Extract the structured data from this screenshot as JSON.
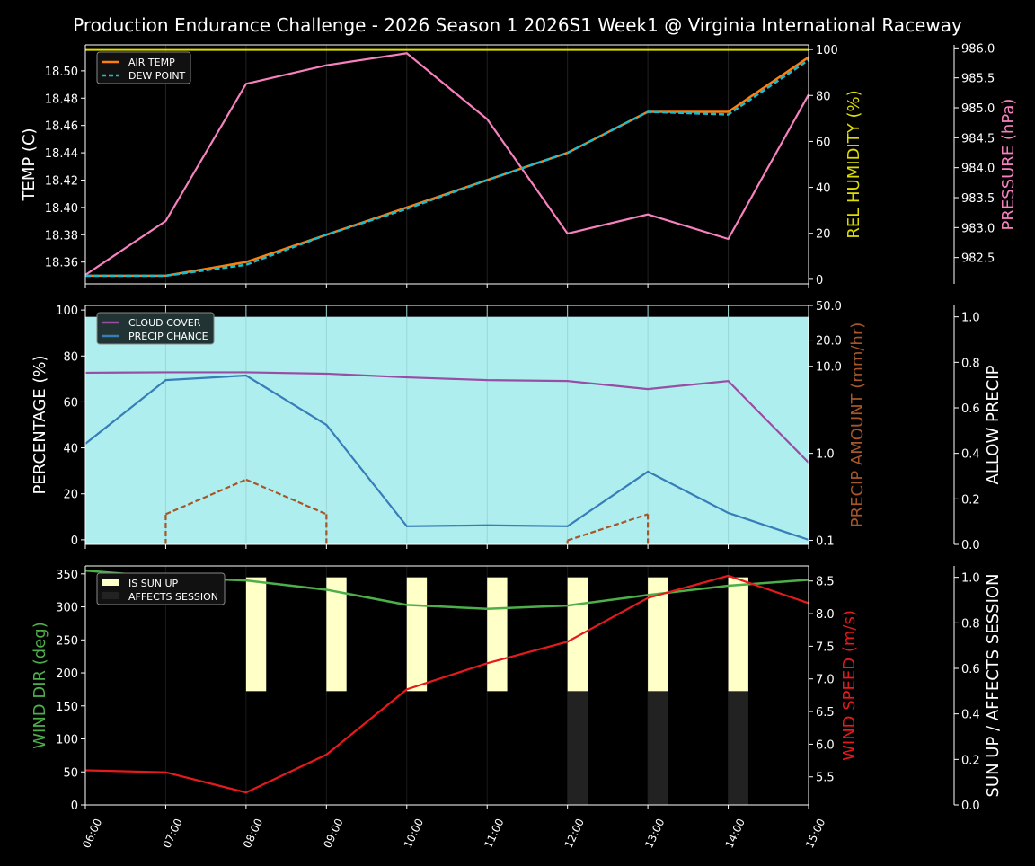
{
  "chart_data": [
    {
      "type": "line",
      "title": "Production Endurance Challenge - 2026 Season 1 2026S1 Week1 @ Virginia International Raceway",
      "x": [
        "06:00",
        "07:00",
        "08:00",
        "09:00",
        "10:00",
        "11:00",
        "12:00",
        "13:00",
        "14:00",
        "15:00"
      ],
      "ylabel": "TEMP (C)",
      "ylim": [
        18.344,
        18.519
      ],
      "yticks": [
        "18.36",
        "18.38",
        "18.40",
        "18.42",
        "18.44",
        "18.46",
        "18.48",
        "18.50"
      ],
      "y2label": "REL HUMIDITY (%)",
      "y2lim": [
        -2,
        102
      ],
      "y2ticks": [
        "0",
        "20",
        "40",
        "60",
        "80",
        "100"
      ],
      "y3label": "PRESSURE (hPa)",
      "y3lim": [
        982.06,
        986.05
      ],
      "y3ticks": [
        "982.5",
        "983.0",
        "983.5",
        "984.0",
        "984.5",
        "985.0",
        "985.5",
        "986.0"
      ],
      "legend_position": "top-left",
      "series": [
        {
          "name": "AIR TEMP",
          "axis": "left",
          "color": "#ff7f0e",
          "style": "solid",
          "values": [
            18.35,
            18.35,
            18.36,
            18.38,
            18.4,
            18.42,
            18.44,
            18.47,
            18.47,
            18.51
          ]
        },
        {
          "name": "DEW POINT",
          "axis": "left",
          "color": "#17becf",
          "style": "dashed",
          "values": [
            18.35,
            18.35,
            18.358,
            18.38,
            18.399,
            18.42,
            18.44,
            18.47,
            18.468,
            18.508
          ]
        },
        {
          "axis": "humidity",
          "color": "#dddd00",
          "style": "solid",
          "values": [
            100,
            100,
            100,
            100,
            100,
            100,
            100,
            100,
            100,
            100
          ]
        },
        {
          "axis": "pressure",
          "color": "#f781bf",
          "style": "solid",
          "values": [
            982.21,
            983.11,
            985.4,
            985.71,
            985.91,
            984.81,
            982.9,
            983.22,
            982.81,
            985.22
          ]
        }
      ]
    },
    {
      "type": "line",
      "x": [
        "06:00",
        "07:00",
        "08:00",
        "09:00",
        "10:00",
        "11:00",
        "12:00",
        "13:00",
        "14:00",
        "15:00"
      ],
      "ylabel": "PERCENTAGE (%)",
      "ylim": [
        -2,
        102
      ],
      "yticks": [
        "0",
        "20",
        "40",
        "60",
        "80",
        "100"
      ],
      "y2label": "PRECIP AMOUNT (mm/hr)",
      "y2scale": "log",
      "y2lim": [
        0.09,
        50
      ],
      "y2ticks": [
        "0.1",
        "1.0",
        "10.0",
        "20.0",
        "50.0"
      ],
      "y3label": "ALLOW PRECIP",
      "y3lim": [
        0,
        1.05
      ],
      "y3ticks": [
        "0.0",
        "0.2",
        "0.4",
        "0.6",
        "0.8",
        "1.0"
      ],
      "legend_position": "top-left",
      "series": [
        {
          "name": "CLOUD COVER",
          "axis": "left",
          "color": "#984ea3",
          "values": [
            72.7,
            72.9,
            72.9,
            72.3,
            70.7,
            69.5,
            69.1,
            65.6,
            69.1,
            33.6
          ]
        },
        {
          "name": "PRECIP CHANCE",
          "axis": "left",
          "color": "#377eb8",
          "values": [
            41.8,
            69.5,
            71.5,
            50.0,
            5.9,
            6.3,
            5.9,
            29.7,
            11.7,
            0
          ]
        },
        {
          "axis": "precip",
          "color": "#a65628",
          "style": "dashed",
          "values": [
            0,
            0.2,
            0.5,
            0.2,
            0,
            0,
            0.1,
            0.2,
            0,
            0
          ]
        },
        {
          "axis": "allow",
          "color": "#afeeee",
          "style": "fill",
          "values": [
            1,
            1,
            1,
            1,
            1,
            1,
            1,
            1,
            1,
            1
          ]
        }
      ]
    },
    {
      "type": "line",
      "x": [
        "06:00",
        "07:00",
        "08:00",
        "09:00",
        "10:00",
        "11:00",
        "12:00",
        "13:00",
        "14:00",
        "15:00"
      ],
      "xticks": [
        "06:00",
        "07:00",
        "08:00",
        "09:00",
        "10:00",
        "11:00",
        "12:00",
        "13:00",
        "14:00",
        "15:00"
      ],
      "ylabel": "WIND DIR (deg)",
      "ylim": [
        0,
        362
      ],
      "yticks": [
        "0",
        "50",
        "100",
        "150",
        "200",
        "250",
        "300",
        "350"
      ],
      "y2label": "WIND SPEED (m/s)",
      "y2lim": [
        5.07,
        8.73
      ],
      "y2ticks": [
        "5.5",
        "6.0",
        "6.5",
        "7.0",
        "7.5",
        "8.0",
        "8.5"
      ],
      "y3label": "SUN UP / AFFECTS SESSION",
      "y3lim": [
        0,
        1.05
      ],
      "y3ticks": [
        "0.0",
        "0.2",
        "0.4",
        "0.6",
        "0.8",
        "1.0"
      ],
      "legend_position": "top-left",
      "series": [
        {
          "axis": "left",
          "color": "#4daf4a",
          "values": [
            355,
            345,
            340,
            326,
            303,
            297,
            302,
            318,
            332,
            341
          ]
        },
        {
          "axis": "speed",
          "color": "#e41a1c",
          "values": [
            5.6,
            5.57,
            5.26,
            5.84,
            6.84,
            7.24,
            7.57,
            8.24,
            8.58,
            8.16
          ]
        },
        {
          "name": "IS SUN UP",
          "axis": "sun",
          "type": "bar",
          "color": "#ffffc8",
          "values": [
            0,
            0,
            1,
            1,
            1,
            1,
            1,
            1,
            1,
            0
          ]
        },
        {
          "name": "AFFECTS SESSION",
          "axis": "sun",
          "type": "bar",
          "color": "#222222",
          "values": [
            0,
            0,
            0,
            0,
            0,
            0,
            1,
            1,
            1,
            0
          ]
        }
      ]
    }
  ]
}
